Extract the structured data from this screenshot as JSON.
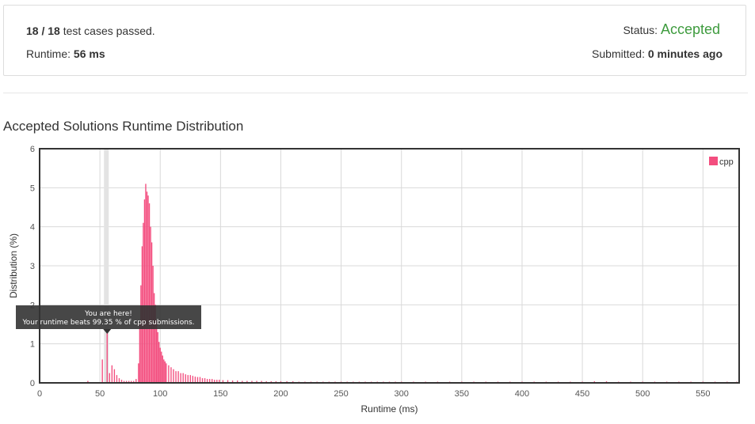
{
  "summary": {
    "passed": "18",
    "slash": " / ",
    "total": "18",
    "passed_suffix": " test cases passed.",
    "runtime_label": "Runtime: ",
    "runtime_value": "56 ms",
    "status_label": "Status: ",
    "status_value": "Accepted",
    "submitted_label": "Submitted: ",
    "submitted_value": "0 minutes ago"
  },
  "chart_title": "Accepted Solutions Runtime Distribution",
  "colors": {
    "bar": "#f34e7f",
    "status": "#3e9b3e",
    "highlight": "#e3e3e3",
    "tooltip": "#333333"
  },
  "tooltip": {
    "line1": "You are here!",
    "line2": "Your runtime beats 99.35 % of cpp submissions."
  },
  "chart_data": {
    "type": "bar",
    "xlabel": "Runtime (ms)",
    "ylabel": "Distribution (%)",
    "xlim": [
      0,
      580
    ],
    "ylim": [
      0,
      6
    ],
    "xticks": [
      0,
      50,
      100,
      150,
      200,
      250,
      300,
      350,
      400,
      450,
      500,
      550
    ],
    "yticks": [
      0,
      1,
      2,
      3,
      4,
      5,
      6
    ],
    "grid": true,
    "legend": "top-right",
    "highlight_x": 56,
    "series": [
      {
        "name": "cpp",
        "points": [
          [
            40,
            0.05
          ],
          [
            52,
            0.6
          ],
          [
            56,
            1.35
          ],
          [
            58,
            0.25
          ],
          [
            60,
            0.45
          ],
          [
            62,
            0.35
          ],
          [
            64,
            0.2
          ],
          [
            66,
            0.12
          ],
          [
            68,
            0.08
          ],
          [
            70,
            0.05
          ],
          [
            72,
            0.05
          ],
          [
            74,
            0.05
          ],
          [
            76,
            0.05
          ],
          [
            78,
            0.05
          ],
          [
            80,
            0.1
          ],
          [
            82,
            0.5
          ],
          [
            83,
            1.5
          ],
          [
            84,
            2.5
          ],
          [
            85,
            3.5
          ],
          [
            86,
            4.1
          ],
          [
            87,
            4.7
          ],
          [
            88,
            5.1
          ],
          [
            89,
            4.9
          ],
          [
            90,
            4.8
          ],
          [
            91,
            4.6
          ],
          [
            92,
            4.0
          ],
          [
            93,
            3.6
          ],
          [
            94,
            3.0
          ],
          [
            95,
            2.3
          ],
          [
            96,
            2.0
          ],
          [
            97,
            1.6
          ],
          [
            98,
            1.3
          ],
          [
            99,
            1.05
          ],
          [
            100,
            0.9
          ],
          [
            101,
            0.8
          ],
          [
            102,
            0.7
          ],
          [
            103,
            0.6
          ],
          [
            104,
            0.55
          ],
          [
            105,
            0.5
          ],
          [
            107,
            0.45
          ],
          [
            109,
            0.4
          ],
          [
            111,
            0.35
          ],
          [
            113,
            0.3
          ],
          [
            115,
            0.3
          ],
          [
            117,
            0.25
          ],
          [
            119,
            0.25
          ],
          [
            121,
            0.22
          ],
          [
            123,
            0.2
          ],
          [
            125,
            0.2
          ],
          [
            127,
            0.18
          ],
          [
            129,
            0.16
          ],
          [
            131,
            0.15
          ],
          [
            133,
            0.15
          ],
          [
            135,
            0.12
          ],
          [
            137,
            0.12
          ],
          [
            139,
            0.1
          ],
          [
            141,
            0.1
          ],
          [
            143,
            0.1
          ],
          [
            145,
            0.08
          ],
          [
            147,
            0.08
          ],
          [
            149,
            0.08
          ],
          [
            152,
            0.07
          ],
          [
            156,
            0.07
          ],
          [
            160,
            0.06
          ],
          [
            164,
            0.06
          ],
          [
            168,
            0.05
          ],
          [
            172,
            0.05
          ],
          [
            176,
            0.05
          ],
          [
            180,
            0.05
          ],
          [
            184,
            0.05
          ],
          [
            188,
            0.04
          ],
          [
            192,
            0.04
          ],
          [
            196,
            0.04
          ],
          [
            200,
            0.04
          ],
          [
            205,
            0.04
          ],
          [
            210,
            0.04
          ],
          [
            215,
            0.03
          ],
          [
            220,
            0.03
          ],
          [
            225,
            0.03
          ],
          [
            230,
            0.03
          ],
          [
            235,
            0.03
          ],
          [
            240,
            0.03
          ],
          [
            245,
            0.03
          ],
          [
            250,
            0.03
          ],
          [
            255,
            0.03
          ],
          [
            260,
            0.03
          ],
          [
            265,
            0.03
          ],
          [
            270,
            0.03
          ],
          [
            275,
            0.03
          ],
          [
            280,
            0.03
          ],
          [
            285,
            0.03
          ],
          [
            290,
            0.03
          ],
          [
            295,
            0.03
          ],
          [
            300,
            0.03
          ],
          [
            310,
            0.03
          ],
          [
            320,
            0.03
          ],
          [
            330,
            0.03
          ],
          [
            340,
            0.03
          ],
          [
            350,
            0.03
          ],
          [
            360,
            0.03
          ],
          [
            370,
            0.03
          ],
          [
            380,
            0.03
          ],
          [
            390,
            0.03
          ],
          [
            400,
            0.03
          ],
          [
            410,
            0.03
          ],
          [
            420,
            0.03
          ],
          [
            430,
            0.03
          ],
          [
            440,
            0.03
          ],
          [
            450,
            0.03
          ],
          [
            460,
            0.04
          ],
          [
            470,
            0.04
          ],
          [
            480,
            0.03
          ],
          [
            490,
            0.03
          ],
          [
            500,
            0.03
          ],
          [
            510,
            0.03
          ],
          [
            520,
            0.03
          ],
          [
            530,
            0.03
          ],
          [
            540,
            0.03
          ],
          [
            550,
            0.03
          ],
          [
            560,
            0.03
          ],
          [
            570,
            0.03
          ],
          [
            578,
            0.03
          ]
        ]
      }
    ]
  }
}
